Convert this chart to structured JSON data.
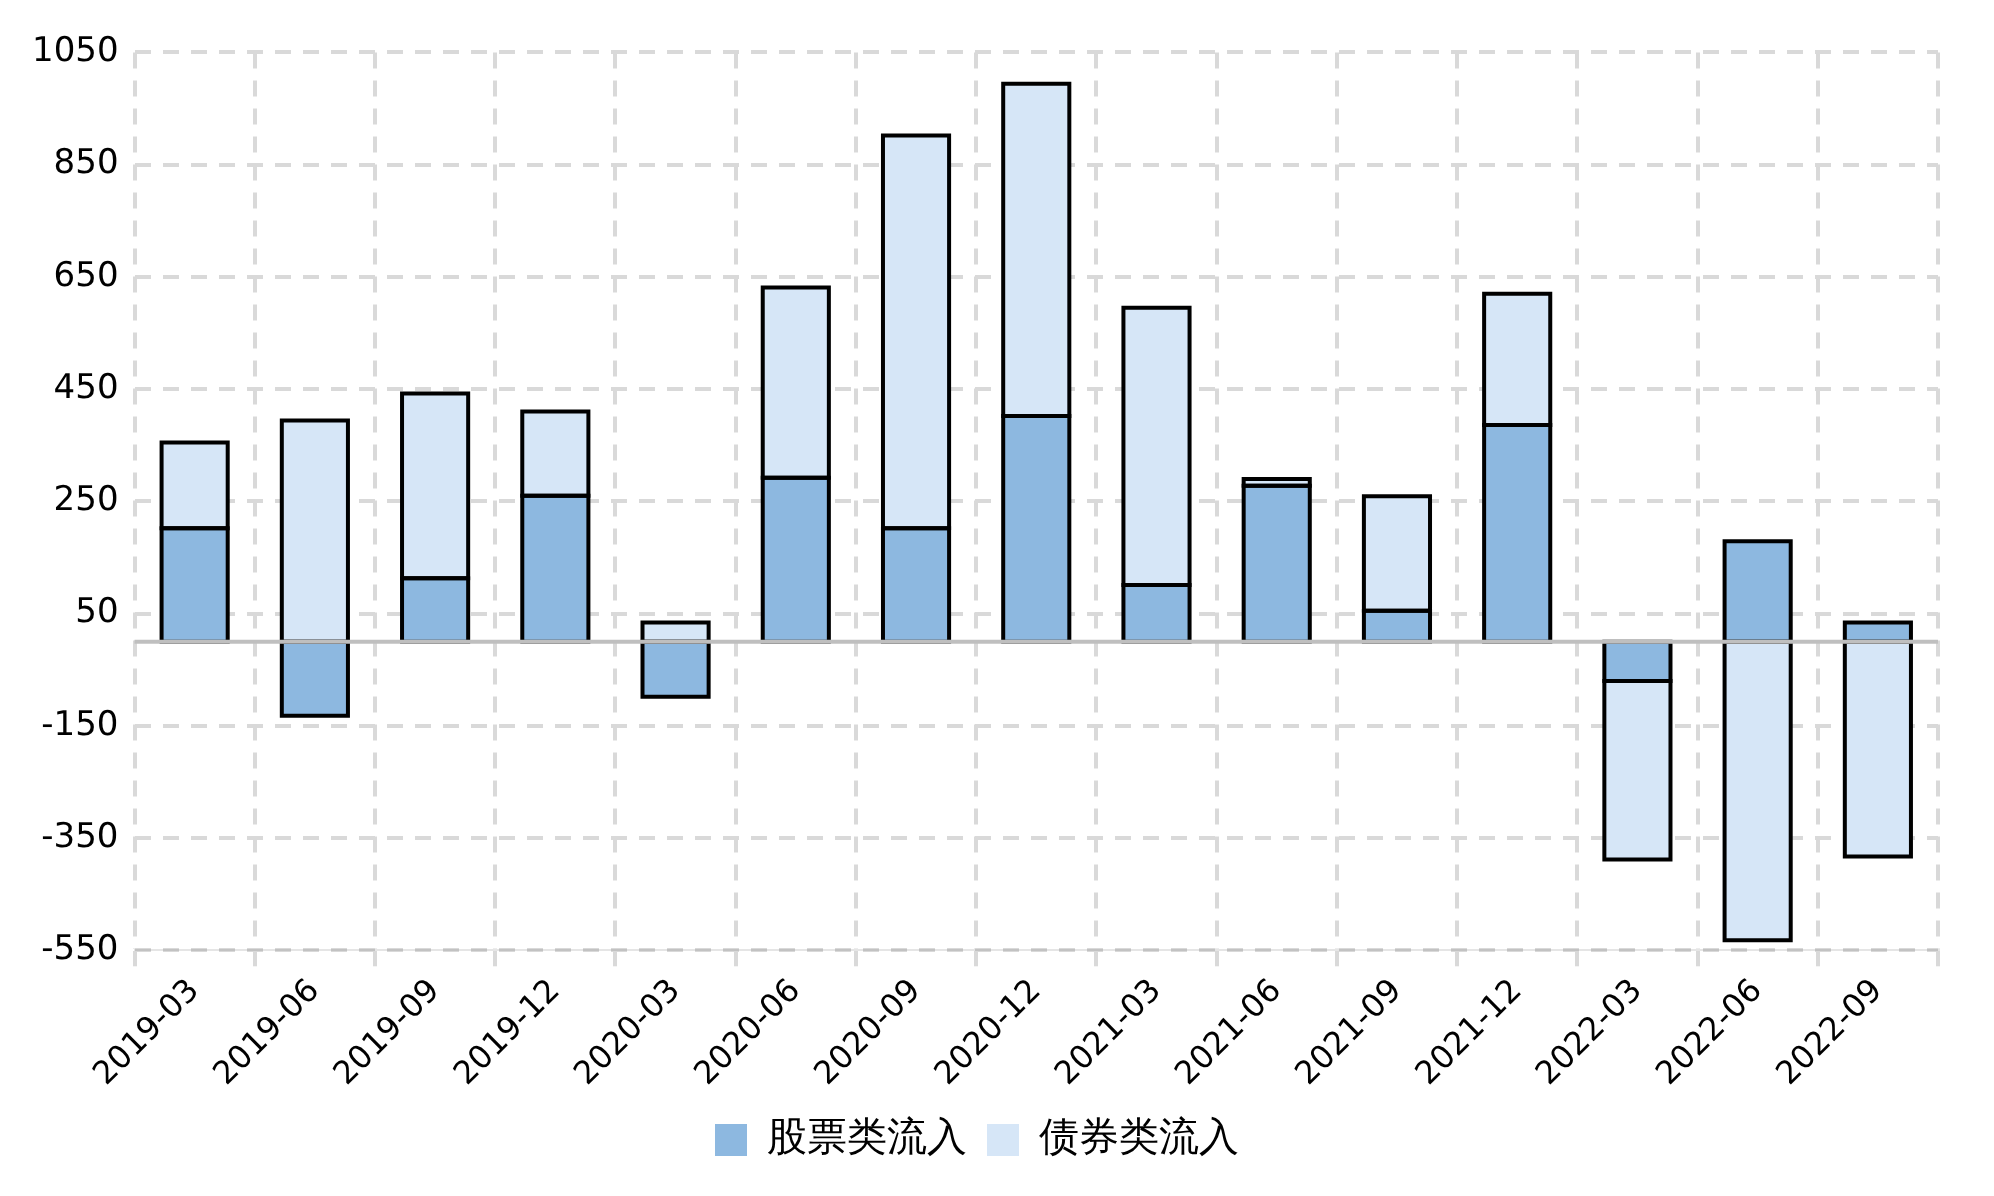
{
  "chart_data": {
    "type": "bar",
    "stacked": true,
    "categories": [
      "2019-03",
      "2019-06",
      "2019-09",
      "2019-12",
      "2020-03",
      "2020-06",
      "2020-09",
      "2020-12",
      "2021-03",
      "2021-06",
      "2021-09",
      "2021-12",
      "2022-03",
      "2022-06",
      "2022-09"
    ],
    "series": [
      {
        "name": "股票类流入",
        "color": "#8db8e0",
        "values": [
          202,
          -132,
          113,
          260,
          -98,
          292,
          202,
          402,
          101,
          278,
          55,
          386,
          -70,
          179,
          34
        ]
      },
      {
        "name": "债券类流入",
        "color": "#d6e6f7",
        "values": [
          153,
          394,
          329,
          150,
          34,
          339,
          700,
          592,
          494,
          12,
          204,
          234,
          -318,
          -532,
          -383
        ]
      }
    ],
    "ylim": [
      -550,
      1050
    ],
    "yticks": [
      -550,
      -350,
      -150,
      50,
      250,
      450,
      650,
      850,
      1050
    ],
    "grid": true,
    "legend": "bottom"
  }
}
